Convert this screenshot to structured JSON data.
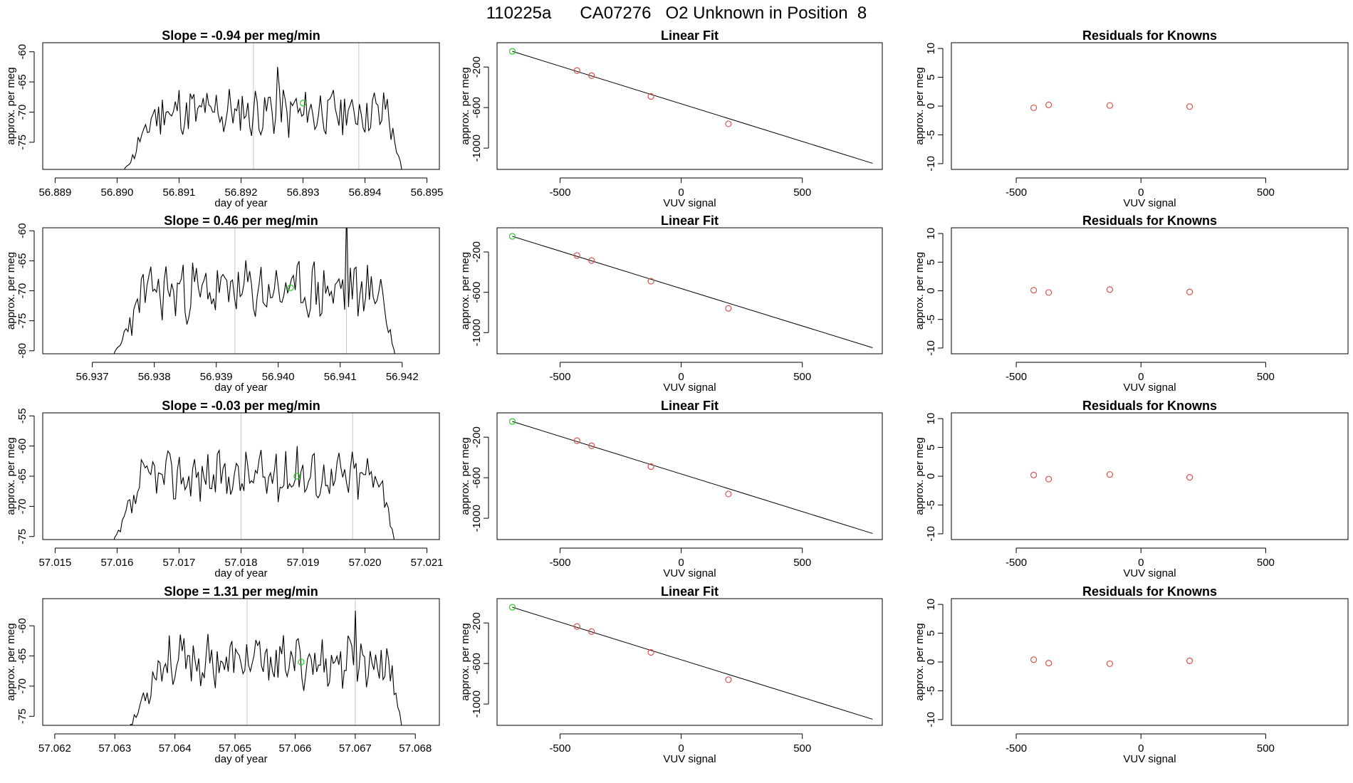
{
  "page_title": "110225a      CA07276   O2 Unknown in Position  8",
  "colors": {
    "known_point": "#d9534f",
    "unknown_point": "#22cc22",
    "trace": "#000000",
    "marker_line": "#c8c8c8"
  },
  "chart_data": [
    {
      "type": "line",
      "title": "Slope =  -0.94  per meg/min",
      "xlabel": "day of year",
      "ylabel": "approx. per meg",
      "xlim": [
        56.8888,
        56.8952
      ],
      "ylim": [
        -79.5,
        -58.5
      ],
      "xticks": [
        56.889,
        56.89,
        56.891,
        56.892,
        56.893,
        56.894,
        56.895
      ],
      "xtick_labels": [
        "56.889",
        "56.890",
        "56.891",
        "56.892",
        "56.893",
        "56.894",
        "56.895"
      ],
      "yticks": [
        -75,
        -70,
        -65,
        -60
      ],
      "ytick_labels": [
        "-75",
        "-70",
        "-65",
        "-60"
      ],
      "trace_start": 56.8901,
      "trace_end": 56.8946,
      "start_value": -80,
      "end_value": -80,
      "base_value": -70,
      "noise": 2.2,
      "seed": 11,
      "spike": {
        "x": 56.8926,
        "value": -62.5
      },
      "markers": [
        56.8922,
        56.8939
      ],
      "unknown_point": {
        "x": 56.893,
        "y": -68.5
      }
    },
    {
      "type": "line",
      "title": "Linear Fit",
      "xlabel": "VUV signal",
      "ylabel": "approx. per meg",
      "xlim": [
        -760,
        830
      ],
      "ylim": [
        -1210,
        40
      ],
      "xticks": [
        -500,
        0,
        500
      ],
      "xtick_labels": [
        "-500",
        "0",
        "500"
      ],
      "yticks": [
        -1000,
        -600,
        -200
      ],
      "ytick_labels": [
        "-1000",
        "-600",
        "-200"
      ],
      "fit_line": [
        [
          -697,
          -45
        ],
        [
          790,
          -1150
        ]
      ],
      "known_points": [
        [
          -430,
          -235
        ],
        [
          -370,
          -285
        ],
        [
          -125,
          -490
        ],
        [
          195,
          -760
        ]
      ],
      "unknown_point": {
        "x": -697,
        "y": -45
      }
    },
    {
      "type": "scatter",
      "title": "Residuals for Knowns",
      "xlabel": "VUV signal",
      "ylabel": "approx. per meg",
      "xlim": [
        -760,
        830
      ],
      "ylim": [
        -11,
        11
      ],
      "xticks": [
        -500,
        0,
        500
      ],
      "xtick_labels": [
        "-500",
        "0",
        "500"
      ],
      "yticks": [
        -10,
        -5,
        0,
        5,
        10
      ],
      "ytick_labels": [
        "-10",
        "-5",
        "0",
        "5",
        "10"
      ],
      "points": [
        [
          -430,
          -0.3
        ],
        [
          -370,
          0.2
        ],
        [
          -125,
          0.1
        ],
        [
          195,
          -0.1
        ]
      ]
    },
    {
      "type": "line",
      "title": "Slope =  0.46  per meg/min",
      "xlabel": "day of year",
      "ylabel": "approx. per meg",
      "xlim": [
        56.9362,
        56.9426
      ],
      "ylim": [
        -80.5,
        -59.5
      ],
      "xticks": [
        56.937,
        56.938,
        56.939,
        56.94,
        56.941,
        56.942
      ],
      "xtick_labels": [
        "56.937",
        "56.938",
        "56.939",
        "56.940",
        "56.941",
        "56.942"
      ],
      "yticks": [
        -80,
        -75,
        -70,
        -65,
        -60
      ],
      "ytick_labels": [
        "-80",
        "-75",
        "-70",
        "-65",
        "-60"
      ],
      "trace_start": 56.9373,
      "trace_end": 56.9419,
      "start_value": -82,
      "end_value": -82,
      "base_value": -70,
      "noise": 2.6,
      "seed": 23,
      "spike": {
        "x": 56.9411,
        "value": -56
      },
      "markers": [
        56.9393,
        56.9411
      ],
      "unknown_point": {
        "x": 56.9402,
        "y": -69.5
      }
    },
    {
      "type": "line",
      "title": "Linear Fit",
      "xlabel": "VUV signal",
      "ylabel": "approx. per meg",
      "xlim": [
        -760,
        830
      ],
      "ylim": [
        -1210,
        40
      ],
      "xticks": [
        -500,
        0,
        500
      ],
      "xtick_labels": [
        "-500",
        "0",
        "500"
      ],
      "yticks": [
        -1000,
        -600,
        -200
      ],
      "ytick_labels": [
        "-1000",
        "-600",
        "-200"
      ],
      "fit_line": [
        [
          -697,
          -45
        ],
        [
          790,
          -1150
        ]
      ],
      "known_points": [
        [
          -430,
          -235
        ],
        [
          -370,
          -285
        ],
        [
          -125,
          -490
        ],
        [
          195,
          -760
        ]
      ],
      "unknown_point": {
        "x": -697,
        "y": -45
      }
    },
    {
      "type": "scatter",
      "title": "Residuals for Knowns",
      "xlabel": "VUV signal",
      "ylabel": "approx. per meg",
      "xlim": [
        -760,
        830
      ],
      "ylim": [
        -11,
        11
      ],
      "xticks": [
        -500,
        0,
        500
      ],
      "xtick_labels": [
        "-500",
        "0",
        "500"
      ],
      "yticks": [
        -10,
        -5,
        0,
        5,
        10
      ],
      "ytick_labels": [
        "-10",
        "-5",
        "0",
        "5",
        "10"
      ],
      "points": [
        [
          -430,
          0.1
        ],
        [
          -370,
          -0.3
        ],
        [
          -125,
          0.2
        ],
        [
          195,
          -0.2
        ]
      ]
    },
    {
      "type": "line",
      "title": "Slope =  -0.03  per meg/min",
      "xlabel": "day of year",
      "ylabel": "approx. per meg",
      "xlim": [
        57.0148,
        57.0212
      ],
      "ylim": [
        -75.5,
        -54.5
      ],
      "xticks": [
        57.015,
        57.016,
        57.017,
        57.018,
        57.019,
        57.02,
        57.021
      ],
      "xtick_labels": [
        "57.015",
        "57.016",
        "57.017",
        "57.018",
        "57.019",
        "57.020",
        "57.021"
      ],
      "yticks": [
        -75,
        -70,
        -65,
        -60,
        -55
      ],
      "ytick_labels": [
        "-75",
        "-70",
        "-65",
        "-60",
        "-55"
      ],
      "trace_start": 57.0159,
      "trace_end": 57.0205,
      "start_value": -77,
      "end_value": -77,
      "base_value": -65,
      "noise": 2.2,
      "seed": 37,
      "spike": {
        "x": 57.0189,
        "value": -60
      },
      "markers": [
        57.018,
        57.0198
      ],
      "unknown_point": {
        "x": 57.0189,
        "y": -65
      }
    },
    {
      "type": "line",
      "title": "Linear Fit",
      "xlabel": "VUV signal",
      "ylabel": "approx. per meg",
      "xlim": [
        -760,
        830
      ],
      "ylim": [
        -1210,
        40
      ],
      "xticks": [
        -500,
        0,
        500
      ],
      "xtick_labels": [
        "-500",
        "0",
        "500"
      ],
      "yticks": [
        -1000,
        -600,
        -200
      ],
      "ytick_labels": [
        "-1000",
        "-600",
        "-200"
      ],
      "fit_line": [
        [
          -697,
          -45
        ],
        [
          790,
          -1150
        ]
      ],
      "known_points": [
        [
          -430,
          -235
        ],
        [
          -370,
          -285
        ],
        [
          -125,
          -490
        ],
        [
          195,
          -760
        ]
      ],
      "unknown_point": {
        "x": -697,
        "y": -45
      }
    },
    {
      "type": "scatter",
      "title": "Residuals for Knowns",
      "xlabel": "VUV signal",
      "ylabel": "approx. per meg",
      "xlim": [
        -760,
        830
      ],
      "ylim": [
        -11,
        11
      ],
      "xticks": [
        -500,
        0,
        500
      ],
      "xtick_labels": [
        "-500",
        "0",
        "500"
      ],
      "yticks": [
        -10,
        -5,
        0,
        5,
        10
      ],
      "ytick_labels": [
        "-10",
        "-5",
        "0",
        "5",
        "10"
      ],
      "points": [
        [
          -430,
          0.2
        ],
        [
          -370,
          -0.5
        ],
        [
          -125,
          0.3
        ],
        [
          195,
          -0.2
        ]
      ]
    },
    {
      "type": "line",
      "title": "Slope =  1.31  per meg/min",
      "xlabel": "day of year",
      "ylabel": "approx. per meg",
      "xlim": [
        57.0618,
        57.0684
      ],
      "ylim": [
        -76.5,
        -55.5
      ],
      "xticks": [
        57.062,
        57.063,
        57.064,
        57.065,
        57.066,
        57.067,
        57.068
      ],
      "xtick_labels": [
        "57.062",
        "57.063",
        "57.064",
        "57.065",
        "57.066",
        "57.067",
        "57.068"
      ],
      "yticks": [
        -75,
        -70,
        -65,
        -60
      ],
      "ytick_labels": [
        "-75",
        "-70",
        "-65",
        "-60"
      ],
      "trace_start": 57.0632,
      "trace_end": 57.0678,
      "start_value": -78,
      "end_value": -78,
      "base_value": -66,
      "noise": 2.2,
      "seed": 53,
      "spike": {
        "x": 57.067,
        "value": -57.5
      },
      "markers": [
        57.0652,
        57.067
      ],
      "unknown_point": {
        "x": 57.0661,
        "y": -66
      }
    },
    {
      "type": "line",
      "title": "Linear Fit",
      "xlabel": "VUV signal",
      "ylabel": "approx. per meg",
      "xlim": [
        -760,
        830
      ],
      "ylim": [
        -1210,
        40
      ],
      "xticks": [
        -500,
        0,
        500
      ],
      "xtick_labels": [
        "-500",
        "0",
        "500"
      ],
      "yticks": [
        -1000,
        -600,
        -200
      ],
      "ytick_labels": [
        "-1000",
        "-600",
        "-200"
      ],
      "fit_line": [
        [
          -697,
          -45
        ],
        [
          790,
          -1150
        ]
      ],
      "known_points": [
        [
          -430,
          -235
        ],
        [
          -370,
          -285
        ],
        [
          -125,
          -490
        ],
        [
          195,
          -760
        ]
      ],
      "unknown_point": {
        "x": -697,
        "y": -45
      }
    },
    {
      "type": "scatter",
      "title": "Residuals for Knowns",
      "xlabel": "VUV signal",
      "ylabel": "approx. per meg",
      "xlim": [
        -760,
        830
      ],
      "ylim": [
        -11,
        11
      ],
      "xticks": [
        -500,
        0,
        500
      ],
      "xtick_labels": [
        "-500",
        "0",
        "500"
      ],
      "yticks": [
        -10,
        -5,
        0,
        5,
        10
      ],
      "ytick_labels": [
        "-10",
        "-5",
        "0",
        "5",
        "10"
      ],
      "points": [
        [
          -430,
          0.4
        ],
        [
          -370,
          -0.2
        ],
        [
          -125,
          -0.3
        ],
        [
          195,
          0.2
        ]
      ]
    }
  ]
}
